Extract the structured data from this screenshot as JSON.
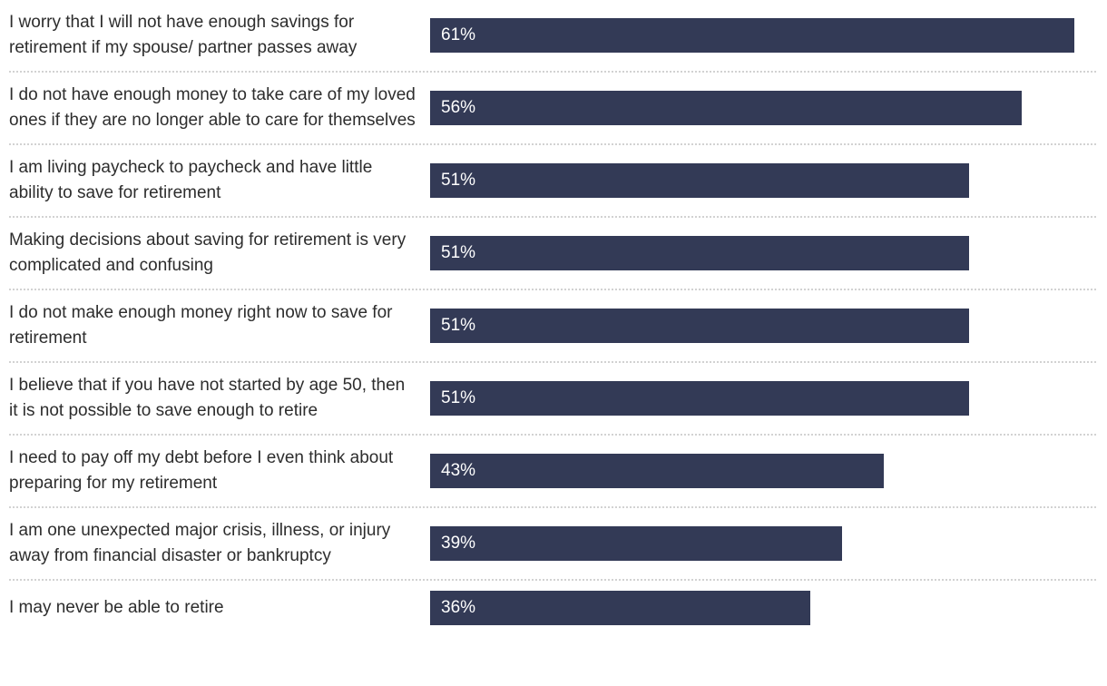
{
  "chart_data": {
    "type": "bar",
    "orientation": "horizontal",
    "title": "",
    "xlabel": "",
    "ylabel": "",
    "xlim": [
      0,
      61
    ],
    "grid": false,
    "legend": false,
    "bar_color": "#333a56",
    "value_label_color": "#ffffff",
    "category_label_color": "#2d2d2d",
    "separator_color": "#d2d2d2",
    "categories": [
      "I worry that I will not have enough savings for retirement if my spouse/ partner passes away",
      "I do not have enough money to take care of my loved ones if they are no longer able to care for themselves",
      "I am living paycheck to paycheck and have little ability to save for retirement",
      "Making decisions about saving for retirement is very complicated and confusing",
      "I do not make enough money right now to save for retirement",
      "I believe that if you have not started by age 50, then it is not possible to save enough to retire",
      "I need to pay off my debt before I even think about preparing for my retirement",
      "I am one unexpected major crisis, illness, or injury away from financial disaster or bankruptcy",
      "I may never be able to retire"
    ],
    "values": [
      61,
      56,
      51,
      51,
      51,
      51,
      43,
      39,
      36
    ],
    "value_labels": [
      "61%",
      "56%",
      "51%",
      "51%",
      "51%",
      "51%",
      "43%",
      "39%",
      "36%"
    ]
  }
}
